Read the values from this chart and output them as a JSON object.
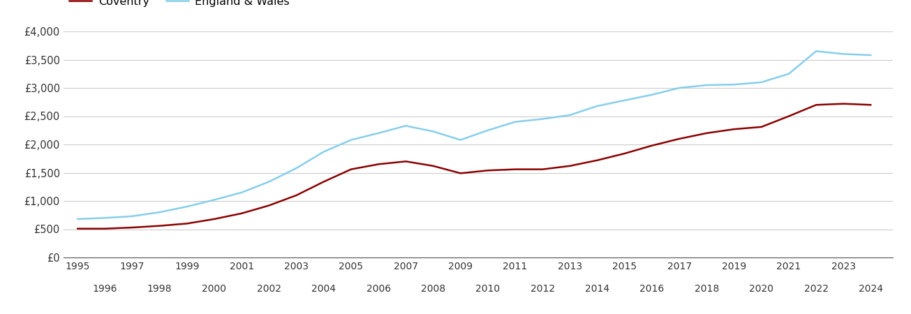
{
  "years": [
    1995,
    1996,
    1997,
    1998,
    1999,
    2000,
    2001,
    2002,
    2003,
    2004,
    2005,
    2006,
    2007,
    2008,
    2009,
    2010,
    2011,
    2012,
    2013,
    2014,
    2015,
    2016,
    2017,
    2018,
    2019,
    2020,
    2021,
    2022,
    2023,
    2024
  ],
  "coventry": [
    510,
    510,
    530,
    560,
    600,
    680,
    780,
    920,
    1100,
    1340,
    1560,
    1650,
    1700,
    1620,
    1490,
    1540,
    1560,
    1560,
    1620,
    1720,
    1840,
    1980,
    2100,
    2200,
    2270,
    2310,
    2500,
    2700,
    2720,
    2700
  ],
  "england_wales": [
    680,
    700,
    730,
    800,
    900,
    1020,
    1150,
    1340,
    1580,
    1870,
    2080,
    2200,
    2330,
    2230,
    2080,
    2250,
    2400,
    2450,
    2520,
    2680,
    2780,
    2880,
    3000,
    3050,
    3060,
    3100,
    3250,
    3650,
    3600,
    3580
  ],
  "coventry_color": "#8B0000",
  "england_wales_color": "#87CEEB",
  "line_width": 1.8,
  "ylim": [
    0,
    4000
  ],
  "yticks": [
    0,
    500,
    1000,
    1500,
    2000,
    2500,
    3000,
    3500,
    4000
  ],
  "ytick_labels": [
    "£0",
    "£500",
    "£1,000",
    "£1,500",
    "£2,000",
    "£2,500",
    "£3,000",
    "£3,500",
    "£4,000"
  ],
  "xticks_odd": [
    1995,
    1997,
    1999,
    2001,
    2003,
    2005,
    2007,
    2009,
    2011,
    2013,
    2015,
    2017,
    2019,
    2021,
    2023
  ],
  "xticks_even": [
    1996,
    1998,
    2000,
    2002,
    2004,
    2006,
    2008,
    2010,
    2012,
    2014,
    2016,
    2018,
    2020,
    2022,
    2024
  ],
  "legend_coventry": "Coventry",
  "legend_ew": "England & Wales",
  "bg_color": "#ffffff",
  "grid_color": "#cccccc",
  "xlim_left": 1994.5,
  "xlim_right": 2024.8
}
